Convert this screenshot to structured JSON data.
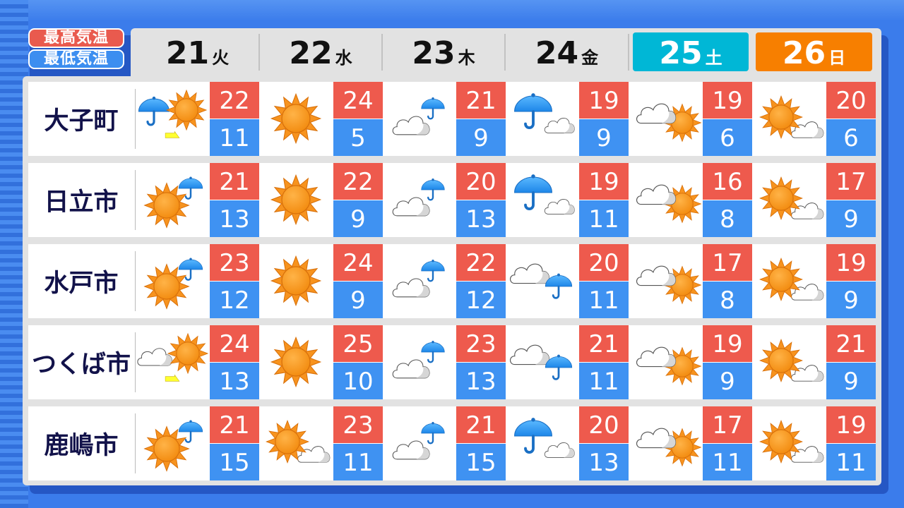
{
  "legend": {
    "high_label": "最高気温",
    "low_label": "最低気温",
    "high_color": "#ee5a4d",
    "low_color": "#3f92f2"
  },
  "days": [
    {
      "date": "21",
      "weekday": "火",
      "style": "normal"
    },
    {
      "date": "22",
      "weekday": "水",
      "style": "normal"
    },
    {
      "date": "23",
      "weekday": "木",
      "style": "normal"
    },
    {
      "date": "24",
      "weekday": "金",
      "style": "normal"
    },
    {
      "date": "25",
      "weekday": "土",
      "style": "sat",
      "color": "#00b7d6"
    },
    {
      "date": "26",
      "weekday": "日",
      "style": "sun",
      "color": "#f77f00"
    }
  ],
  "cities": [
    {
      "name": "大子町",
      "forecast": [
        {
          "icon": "rain-then-sun",
          "high": "22",
          "low": "11"
        },
        {
          "icon": "sun",
          "high": "24",
          "low": "5"
        },
        {
          "icon": "cloud-with-rain",
          "high": "21",
          "low": "9"
        },
        {
          "icon": "rain-with-cloud",
          "high": "19",
          "low": "9"
        },
        {
          "icon": "cloud-with-sun",
          "high": "19",
          "low": "6"
        },
        {
          "icon": "sun-with-cloud",
          "high": "20",
          "low": "6"
        }
      ]
    },
    {
      "name": "日立市",
      "forecast": [
        {
          "icon": "sun-with-rain",
          "high": "21",
          "low": "13"
        },
        {
          "icon": "sun",
          "high": "22",
          "low": "9"
        },
        {
          "icon": "cloud-with-rain",
          "high": "20",
          "low": "13"
        },
        {
          "icon": "rain-with-cloud",
          "high": "19",
          "low": "11"
        },
        {
          "icon": "cloud-with-sun",
          "high": "16",
          "low": "8"
        },
        {
          "icon": "sun-with-cloud",
          "high": "17",
          "low": "9"
        }
      ]
    },
    {
      "name": "水戸市",
      "forecast": [
        {
          "icon": "sun-with-rain",
          "high": "23",
          "low": "12"
        },
        {
          "icon": "sun",
          "high": "24",
          "low": "9"
        },
        {
          "icon": "cloud-with-rain",
          "high": "22",
          "low": "12"
        },
        {
          "icon": "cloud-then-rain",
          "high": "20",
          "low": "11"
        },
        {
          "icon": "cloud-with-sun",
          "high": "17",
          "low": "8"
        },
        {
          "icon": "sun-with-cloud",
          "high": "19",
          "low": "9"
        }
      ]
    },
    {
      "name": "つくば市",
      "forecast": [
        {
          "icon": "cloud-then-sun",
          "high": "24",
          "low": "13"
        },
        {
          "icon": "sun",
          "high": "25",
          "low": "10"
        },
        {
          "icon": "cloud-with-rain",
          "high": "23",
          "low": "13"
        },
        {
          "icon": "cloud-then-rain",
          "high": "21",
          "low": "11"
        },
        {
          "icon": "cloud-with-sun",
          "high": "19",
          "low": "9"
        },
        {
          "icon": "sun-with-cloud",
          "high": "21",
          "low": "9"
        }
      ]
    },
    {
      "name": "鹿嶋市",
      "forecast": [
        {
          "icon": "sun-with-rain",
          "high": "21",
          "low": "15"
        },
        {
          "icon": "sun-with-cloud",
          "high": "23",
          "low": "11"
        },
        {
          "icon": "cloud-with-rain",
          "high": "21",
          "low": "15"
        },
        {
          "icon": "rain-with-cloud",
          "high": "20",
          "low": "13"
        },
        {
          "icon": "cloud-with-sun",
          "high": "17",
          "low": "11"
        },
        {
          "icon": "sun-with-cloud",
          "high": "19",
          "low": "11"
        }
      ]
    }
  ]
}
